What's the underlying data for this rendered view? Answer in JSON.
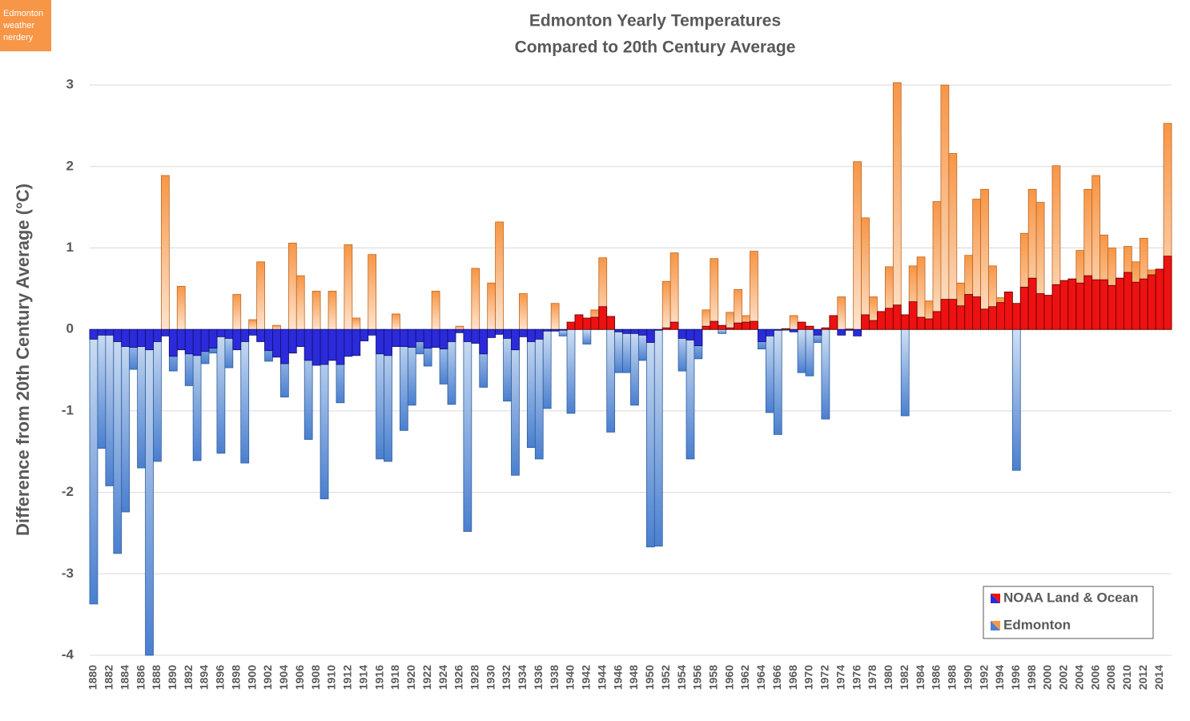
{
  "badge": [
    "Edmonton",
    "weather",
    "nerdery"
  ],
  "chart_data": {
    "type": "bar",
    "title": "Edmonton Yearly Temperatures",
    "subtitle": "Compared to 20th Century Average",
    "y_label": "Difference from 20th Century Average (°C)",
    "categories": [
      "1880",
      null,
      "1882",
      null,
      "1884",
      null,
      "1886",
      null,
      "1888",
      null,
      "1890",
      null,
      "1892",
      null,
      "1894",
      null,
      "1896",
      null,
      "1898",
      null,
      "1900",
      null,
      "1902",
      null,
      "1904",
      null,
      "1906",
      null,
      "1908",
      null,
      "1910",
      null,
      "1912",
      null,
      "1914",
      null,
      "1916",
      null,
      "1918",
      null,
      "1920",
      null,
      "1922",
      null,
      "1924",
      null,
      "1926",
      null,
      "1928",
      null,
      "1930",
      null,
      "1932",
      null,
      "1934",
      null,
      "1936",
      null,
      "1938",
      null,
      "1940",
      null,
      "1942",
      null,
      "1944",
      null,
      "1946",
      null,
      "1948",
      null,
      "1950",
      null,
      "1952",
      null,
      "1954",
      null,
      "1956",
      null,
      "1958",
      null,
      "1960",
      null,
      "1962",
      null,
      "1964",
      null,
      "1966",
      null,
      "1968",
      null,
      "1970",
      null,
      "1972",
      null,
      "1974",
      null,
      "1976",
      null,
      "1978",
      null,
      "1980",
      null,
      "1982",
      null,
      "1984",
      null,
      "1986",
      null,
      "1988",
      null,
      "1990",
      null,
      "1992",
      null,
      "1994",
      null,
      "1996",
      null,
      "1998",
      null,
      "2000",
      null,
      "2002",
      null,
      "2004",
      null,
      "2006",
      null,
      "2008",
      null,
      "2010",
      null,
      "2012",
      null,
      "2014",
      null
    ],
    "series": [
      {
        "name": "Edmonton",
        "color": "#f79646",
        "negative_color": "#4a7fcf",
        "values": [
          -3.37,
          -1.46,
          -1.92,
          -2.75,
          -2.24,
          -0.49,
          -1.7,
          -4.0,
          -1.62,
          1.89,
          -0.51,
          0.53,
          -0.69,
          -1.61,
          -0.42,
          -0.29,
          -1.52,
          -0.47,
          0.43,
          -1.64,
          0.12,
          0.83,
          -0.39,
          0.05,
          -0.83,
          1.06,
          0.66,
          -1.35,
          0.47,
          -2.08,
          0.47,
          -0.9,
          1.04,
          0.14,
          -0.14,
          0.92,
          -1.59,
          -1.62,
          0.19,
          -1.24,
          -0.93,
          -0.3,
          -0.45,
          0.47,
          -0.67,
          -0.92,
          0.04,
          -2.48,
          0.75,
          -0.71,
          0.57,
          1.32,
          -0.88,
          -1.79,
          0.44,
          -1.45,
          -1.59,
          -0.97,
          0.32,
          -0.08,
          -1.03,
          0.18,
          -0.18,
          0.24,
          0.88,
          -1.26,
          -0.53,
          -0.53,
          -0.93,
          -0.38,
          -2.67,
          -2.66,
          0.59,
          0.94,
          -0.51,
          -1.59,
          -0.36,
          0.24,
          0.87,
          -0.05,
          0.21,
          0.49,
          0.17,
          0.96,
          -0.24,
          -1.02,
          -1.29,
          -0.01,
          0.17,
          -0.53,
          -0.57,
          -0.16,
          -1.1,
          0.17,
          0.4,
          0.01,
          2.06,
          1.37,
          0.4,
          0.22,
          0.77,
          3.03,
          -1.06,
          0.78,
          0.89,
          0.35,
          1.57,
          3.0,
          2.16,
          0.57,
          0.91,
          1.6,
          1.72,
          0.78,
          0.39,
          0.46,
          -1.73,
          1.18,
          1.72,
          1.56,
          0.41,
          2.01,
          0.6,
          0.62,
          0.97,
          1.72,
          1.89,
          1.16,
          1.0,
          0.63,
          1.02,
          0.83,
          1.12,
          0.73,
          0.74,
          2.53
        ]
      },
      {
        "name": "NOAA Land & Ocean",
        "color": "#ee1111",
        "negative_color": "#2b2bdb",
        "values": [
          -0.12,
          -0.07,
          -0.07,
          -0.15,
          -0.21,
          -0.22,
          -0.21,
          -0.25,
          -0.15,
          -0.08,
          -0.33,
          -0.25,
          -0.3,
          -0.32,
          -0.27,
          -0.23,
          -0.09,
          -0.11,
          -0.25,
          -0.15,
          -0.07,
          -0.15,
          -0.26,
          -0.34,
          -0.42,
          -0.29,
          -0.21,
          -0.38,
          -0.44,
          -0.43,
          -0.38,
          -0.43,
          -0.33,
          -0.32,
          -0.14,
          -0.07,
          -0.3,
          -0.32,
          -0.21,
          -0.21,
          -0.22,
          -0.15,
          -0.23,
          -0.22,
          -0.24,
          -0.15,
          -0.04,
          -0.15,
          -0.17,
          -0.3,
          -0.1,
          -0.06,
          -0.11,
          -0.25,
          -0.09,
          -0.15,
          -0.12,
          -0.02,
          -0.02,
          -0.01,
          0.09,
          0.18,
          0.14,
          0.15,
          0.28,
          0.16,
          -0.03,
          -0.05,
          -0.05,
          -0.07,
          -0.16,
          -0.01,
          0.02,
          0.09,
          -0.11,
          -0.13,
          -0.2,
          0.04,
          0.1,
          0.05,
          0.02,
          0.08,
          0.09,
          0.1,
          -0.15,
          -0.08,
          -0.01,
          0.01,
          -0.03,
          0.09,
          0.04,
          -0.07,
          0.02,
          0.17,
          -0.07,
          -0.01,
          -0.08,
          0.18,
          0.11,
          0.22,
          0.26,
          0.3,
          0.18,
          0.34,
          0.15,
          0.13,
          0.22,
          0.37,
          0.37,
          0.29,
          0.43,
          0.4,
          0.25,
          0.28,
          0.33,
          0.46,
          0.32,
          0.52,
          0.63,
          0.44,
          0.42,
          0.55,
          0.6,
          0.62,
          0.57,
          0.66,
          0.61,
          0.61,
          0.54,
          0.63,
          0.7,
          0.58,
          0.62,
          0.67,
          0.74,
          0.9
        ]
      }
    ],
    "ylim": [
      -4,
      3.1
    ],
    "yticks": [
      -4,
      -3,
      -2,
      -1,
      0,
      1,
      2,
      3
    ],
    "grid": true,
    "legend": "lower right"
  }
}
